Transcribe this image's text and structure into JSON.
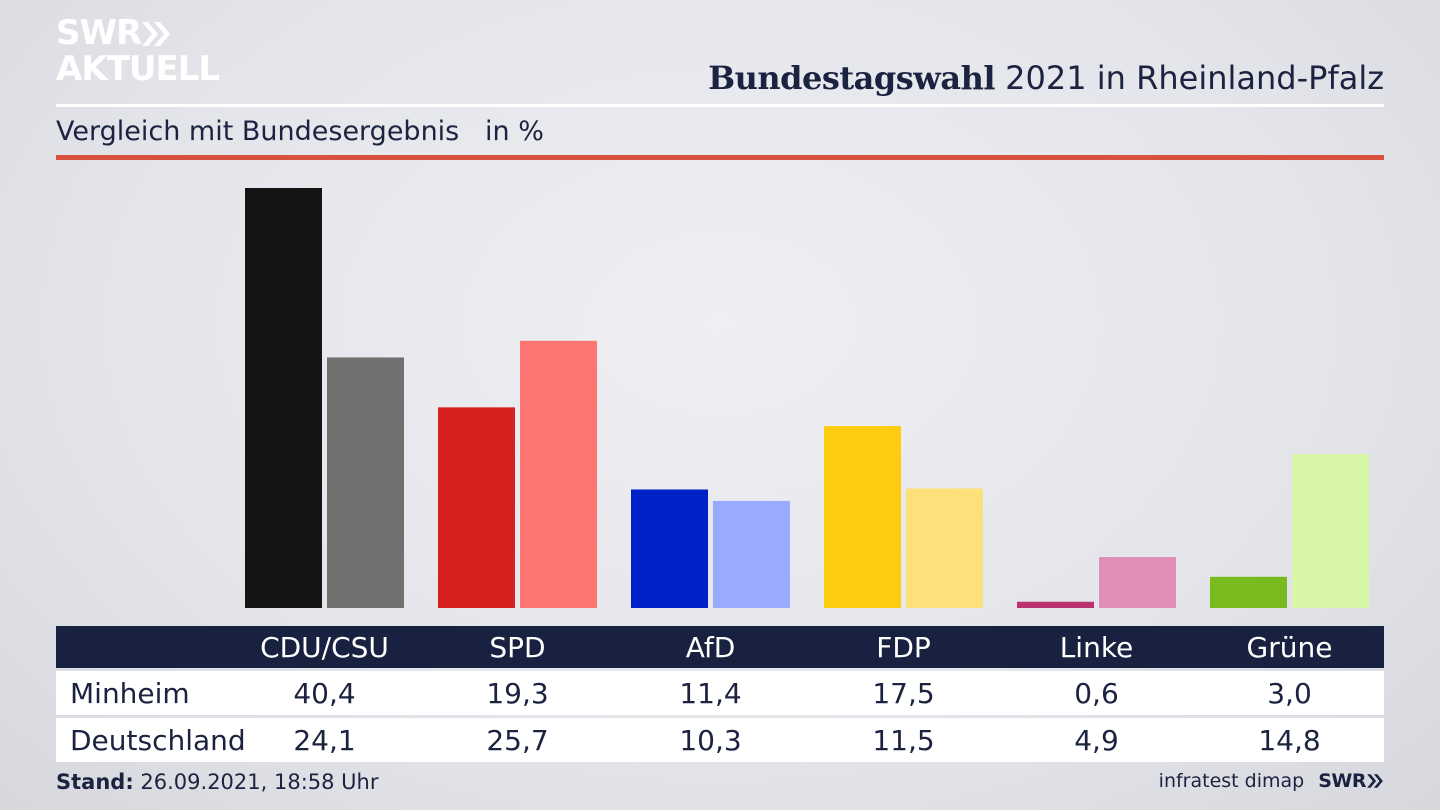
{
  "brand": {
    "logo_line1": "SWR",
    "logo_line2": "AKTUELL",
    "footer_logo": "SWR"
  },
  "header": {
    "title_bold": "Bundestagswahl",
    "title_rest": " 2021 in Rheinland-Pfalz",
    "subtitle": "Vergleich mit Bundesergebnis   in %"
  },
  "colors": {
    "navy": "#18213f",
    "accent_red": "#d9503f"
  },
  "chart_data": {
    "type": "bar",
    "title": "Bundestagswahl 2021 in Rheinland-Pfalz",
    "subtitle": "Vergleich mit Bundesergebnis   in %",
    "categories": [
      "CDU/CSU",
      "SPD",
      "AfD",
      "FDP",
      "Linke",
      "Grüne"
    ],
    "series": [
      {
        "name": "Minheim",
        "values": [
          40.4,
          19.3,
          11.4,
          17.5,
          0.6,
          3.0
        ],
        "display": [
          "40,4",
          "19,3",
          "11,4",
          "17,5",
          "0,6",
          "3,0"
        ],
        "colors": [
          "#141414",
          "#d71f1f",
          "#0020c8",
          "#fdcc0f",
          "#b8326f",
          "#79bb1f"
        ]
      },
      {
        "name": "Deutschland",
        "values": [
          24.1,
          25.7,
          10.3,
          11.5,
          4.9,
          14.8
        ],
        "display": [
          "24,1",
          "25,7",
          "10,3",
          "11,5",
          "4,9",
          "14,8"
        ],
        "colors": [
          "#72706f",
          "#fd7571",
          "#9aaaff",
          "#fde07a",
          "#e08db8",
          "#d7f7a6"
        ]
      }
    ],
    "ylim": [
      0,
      40.4
    ],
    "grid": false,
    "legend": "table below chart"
  },
  "table": {
    "rows": [
      {
        "label": "Minheim",
        "series_index": 0
      },
      {
        "label": "Deutschland",
        "series_index": 1
      }
    ]
  },
  "footer": {
    "stand_label": "Stand:",
    "stand_value": " 26.09.2021, 18:58 Uhr",
    "source": "infratest dimap"
  }
}
